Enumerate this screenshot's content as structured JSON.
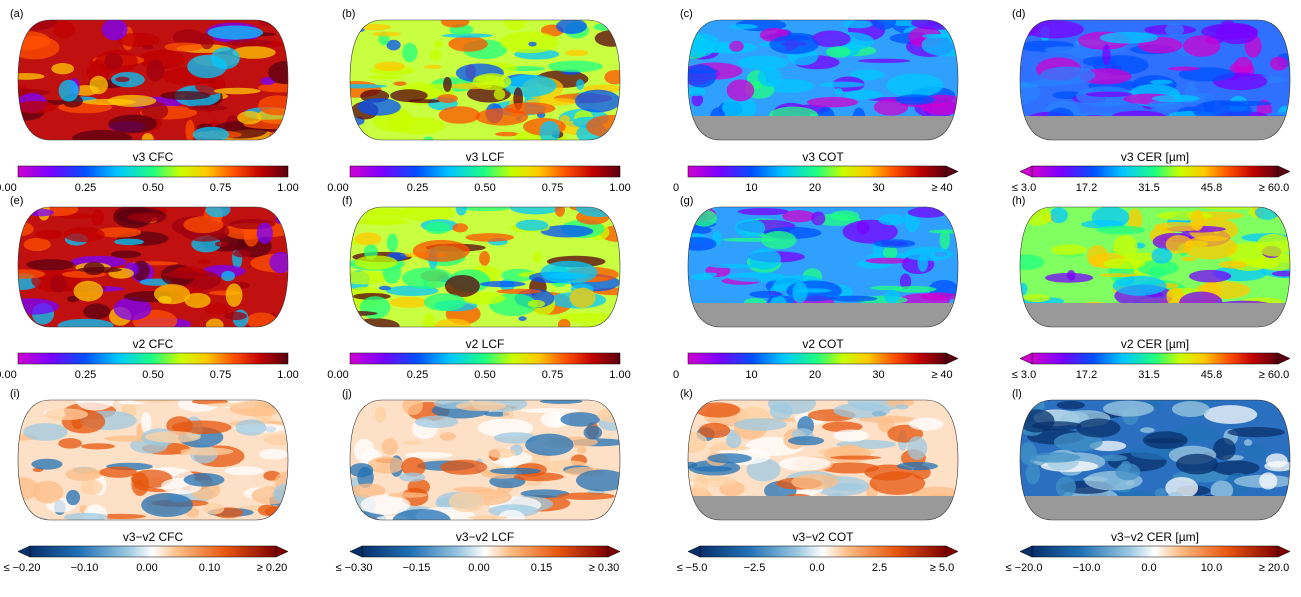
{
  "panels": [
    {
      "label": "(a)",
      "title": "v3 CFC",
      "ticks": [
        "0.00",
        "0.25",
        "0.50",
        "0.75",
        "1.00"
      ]
    },
    {
      "label": "(b)",
      "title": "v3 LCF",
      "ticks": [
        "0.00",
        "0.25",
        "0.50",
        "0.75",
        "1.00"
      ]
    },
    {
      "label": "(c)",
      "title": "v3 COT",
      "ticks": [
        "0",
        "10",
        "20",
        "30",
        "≥ 40"
      ]
    },
    {
      "label": "(d)",
      "title": "v3 CER [µm]",
      "ticks": [
        "≤ 3.0",
        "17.2",
        "31.5",
        "45.8",
        "≥ 60.0"
      ]
    },
    {
      "label": "(e)",
      "title": "v2 CFC",
      "ticks": [
        "0.00",
        "0.25",
        "0.50",
        "0.75",
        "1.00"
      ]
    },
    {
      "label": "(f)",
      "title": "v2 LCF",
      "ticks": [
        "0.00",
        "0.25",
        "0.50",
        "0.75",
        "1.00"
      ]
    },
    {
      "label": "(g)",
      "title": "v2 COT",
      "ticks": [
        "0",
        "10",
        "20",
        "30",
        "≥ 40"
      ]
    },
    {
      "label": "(h)",
      "title": "v2 CER [µm]",
      "ticks": [
        "≤ 3.0",
        "17.2",
        "31.5",
        "45.8",
        "≥ 60.0"
      ]
    },
    {
      "label": "(i)",
      "title": "v3−v2 CFC",
      "ticks": [
        "≤ −0.20",
        "−0.10",
        "0.00",
        "0.10",
        "≥ 0.20"
      ]
    },
    {
      "label": "(j)",
      "title": "v3−v2 LCF",
      "ticks": [
        "≤ −0.30",
        "−0.15",
        "0.00",
        "0.15",
        "≥ 0.30"
      ]
    },
    {
      "label": "(k)",
      "title": "v3−v2 COT",
      "ticks": [
        "≤ −5.0",
        "−2.5",
        "0.0",
        "2.5",
        "≥ 5.0"
      ]
    },
    {
      "label": "(l)",
      "title": "v3−v2 CER [µm]",
      "ticks": [
        "≤ −20.0",
        "−10.0",
        "0.0",
        "10.0",
        "≥ 20.0"
      ]
    }
  ]
}
